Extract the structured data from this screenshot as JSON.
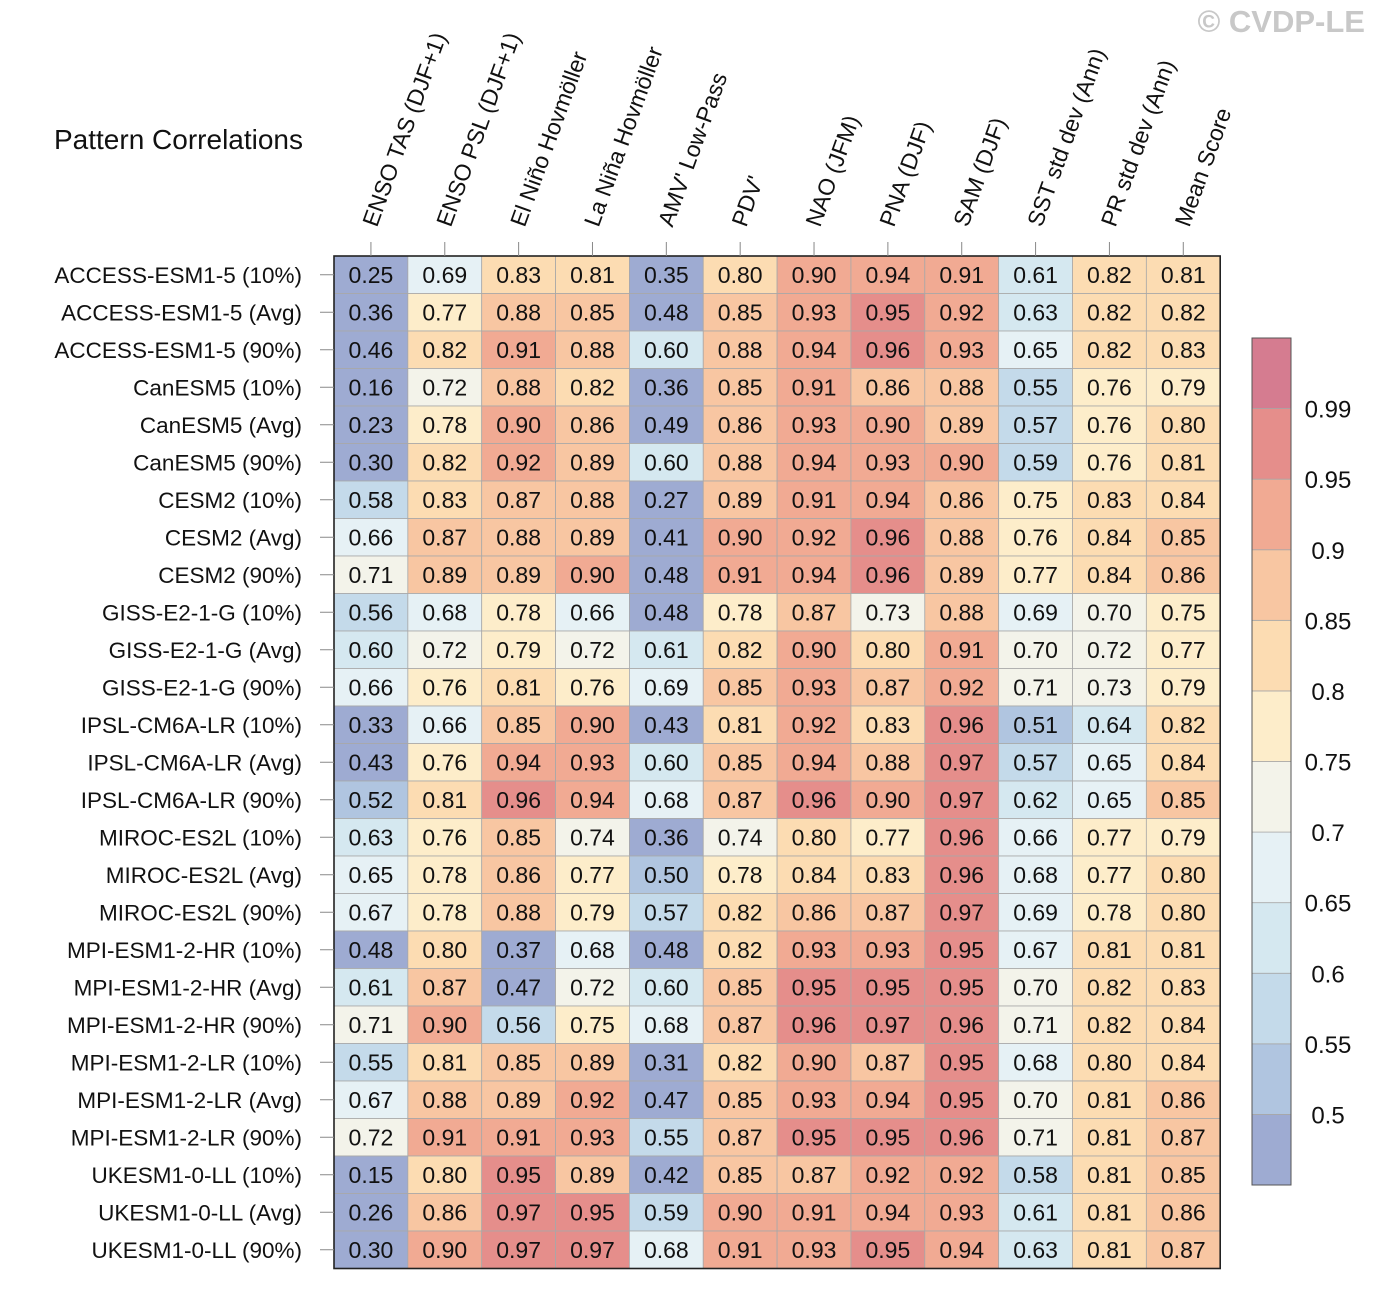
{
  "watermark": "© CVDP-LE",
  "chart_data": {
    "type": "heatmap",
    "title": "Pattern Correlations",
    "columns": [
      "ENSO TAS (DJF+1)",
      "ENSO PSL (DJF+1)",
      "El Niño Hovmöller",
      "La Niña Hovmöller",
      "AMV' Low-Pass",
      "PDV'",
      "NAO (JFM)",
      "PNA (DJF)",
      "SAM (DJF)",
      "SST std dev (Ann)",
      "PR std dev (Ann)",
      "Mean Score"
    ],
    "rows": [
      "ACCESS-ESM1-5 (10%)",
      "ACCESS-ESM1-5 (Avg)",
      "ACCESS-ESM1-5 (90%)",
      "CanESM5 (10%)",
      "CanESM5 (Avg)",
      "CanESM5 (90%)",
      "CESM2 (10%)",
      "CESM2 (Avg)",
      "CESM2 (90%)",
      "GISS-E2-1-G (10%)",
      "GISS-E2-1-G (Avg)",
      "GISS-E2-1-G (90%)",
      "IPSL-CM6A-LR (10%)",
      "IPSL-CM6A-LR (Avg)",
      "IPSL-CM6A-LR (90%)",
      "MIROC-ES2L (10%)",
      "MIROC-ES2L (Avg)",
      "MIROC-ES2L (90%)",
      "MPI-ESM1-2-HR (10%)",
      "MPI-ESM1-2-HR (Avg)",
      "MPI-ESM1-2-HR (90%)",
      "MPI-ESM1-2-LR (10%)",
      "MPI-ESM1-2-LR (Avg)",
      "MPI-ESM1-2-LR (90%)",
      "UKESM1-0-LL (10%)",
      "UKESM1-0-LL (Avg)",
      "UKESM1-0-LL (90%)"
    ],
    "values": [
      [
        "0.25",
        "0.69",
        "0.83",
        "0.81",
        "0.35",
        "0.80",
        "0.90",
        "0.94",
        "0.91",
        "0.61",
        "0.82",
        "0.81"
      ],
      [
        "0.36",
        "0.77",
        "0.88",
        "0.85",
        "0.48",
        "0.85",
        "0.93",
        "0.95",
        "0.92",
        "0.63",
        "0.82",
        "0.82"
      ],
      [
        "0.46",
        "0.82",
        "0.91",
        "0.88",
        "0.60",
        "0.88",
        "0.94",
        "0.96",
        "0.93",
        "0.65",
        "0.82",
        "0.83"
      ],
      [
        "0.16",
        "0.72",
        "0.88",
        "0.82",
        "0.36",
        "0.85",
        "0.91",
        "0.86",
        "0.88",
        "0.55",
        "0.76",
        "0.79"
      ],
      [
        "0.23",
        "0.78",
        "0.90",
        "0.86",
        "0.49",
        "0.86",
        "0.93",
        "0.90",
        "0.89",
        "0.57",
        "0.76",
        "0.80"
      ],
      [
        "0.30",
        "0.82",
        "0.92",
        "0.89",
        "0.60",
        "0.88",
        "0.94",
        "0.93",
        "0.90",
        "0.59",
        "0.76",
        "0.81"
      ],
      [
        "0.58",
        "0.83",
        "0.87",
        "0.88",
        "0.27",
        "0.89",
        "0.91",
        "0.94",
        "0.86",
        "0.75",
        "0.83",
        "0.84"
      ],
      [
        "0.66",
        "0.87",
        "0.88",
        "0.89",
        "0.41",
        "0.90",
        "0.92",
        "0.96",
        "0.88",
        "0.76",
        "0.84",
        "0.85"
      ],
      [
        "0.71",
        "0.89",
        "0.89",
        "0.90",
        "0.48",
        "0.91",
        "0.94",
        "0.96",
        "0.89",
        "0.77",
        "0.84",
        "0.86"
      ],
      [
        "0.56",
        "0.68",
        "0.78",
        "0.66",
        "0.48",
        "0.78",
        "0.87",
        "0.73",
        "0.88",
        "0.69",
        "0.70",
        "0.75"
      ],
      [
        "0.60",
        "0.72",
        "0.79",
        "0.72",
        "0.61",
        "0.82",
        "0.90",
        "0.80",
        "0.91",
        "0.70",
        "0.72",
        "0.77"
      ],
      [
        "0.66",
        "0.76",
        "0.81",
        "0.76",
        "0.69",
        "0.85",
        "0.93",
        "0.87",
        "0.92",
        "0.71",
        "0.73",
        "0.79"
      ],
      [
        "0.33",
        "0.66",
        "0.85",
        "0.90",
        "0.43",
        "0.81",
        "0.92",
        "0.83",
        "0.96",
        "0.51",
        "0.64",
        "0.82"
      ],
      [
        "0.43",
        "0.76",
        "0.94",
        "0.93",
        "0.60",
        "0.85",
        "0.94",
        "0.88",
        "0.97",
        "0.57",
        "0.65",
        "0.84"
      ],
      [
        "0.52",
        "0.81",
        "0.96",
        "0.94",
        "0.68",
        "0.87",
        "0.96",
        "0.90",
        "0.97",
        "0.62",
        "0.65",
        "0.85"
      ],
      [
        "0.63",
        "0.76",
        "0.85",
        "0.74",
        "0.36",
        "0.74",
        "0.80",
        "0.77",
        "0.96",
        "0.66",
        "0.77",
        "0.79"
      ],
      [
        "0.65",
        "0.78",
        "0.86",
        "0.77",
        "0.50",
        "0.78",
        "0.84",
        "0.83",
        "0.96",
        "0.68",
        "0.77",
        "0.80"
      ],
      [
        "0.67",
        "0.78",
        "0.88",
        "0.79",
        "0.57",
        "0.82",
        "0.86",
        "0.87",
        "0.97",
        "0.69",
        "0.78",
        "0.80"
      ],
      [
        "0.48",
        "0.80",
        "0.37",
        "0.68",
        "0.48",
        "0.82",
        "0.93",
        "0.93",
        "0.95",
        "0.67",
        "0.81",
        "0.81"
      ],
      [
        "0.61",
        "0.87",
        "0.47",
        "0.72",
        "0.60",
        "0.85",
        "0.95",
        "0.95",
        "0.95",
        "0.70",
        "0.82",
        "0.83"
      ],
      [
        "0.71",
        "0.90",
        "0.56",
        "0.75",
        "0.68",
        "0.87",
        "0.96",
        "0.97",
        "0.96",
        "0.71",
        "0.82",
        "0.84"
      ],
      [
        "0.55",
        "0.81",
        "0.85",
        "0.89",
        "0.31",
        "0.82",
        "0.90",
        "0.87",
        "0.95",
        "0.68",
        "0.80",
        "0.84"
      ],
      [
        "0.67",
        "0.88",
        "0.89",
        "0.92",
        "0.47",
        "0.85",
        "0.93",
        "0.94",
        "0.95",
        "0.70",
        "0.81",
        "0.86"
      ],
      [
        "0.72",
        "0.91",
        "0.91",
        "0.93",
        "0.55",
        "0.87",
        "0.95",
        "0.95",
        "0.96",
        "0.71",
        "0.81",
        "0.87"
      ],
      [
        "0.15",
        "0.80",
        "0.95",
        "0.89",
        "0.42",
        "0.85",
        "0.87",
        "0.92",
        "0.92",
        "0.58",
        "0.81",
        "0.85"
      ],
      [
        "0.26",
        "0.86",
        "0.97",
        "0.95",
        "0.59",
        "0.90",
        "0.91",
        "0.94",
        "0.93",
        "0.61",
        "0.81",
        "0.86"
      ],
      [
        "0.30",
        "0.90",
        "0.97",
        "0.97",
        "0.68",
        "0.91",
        "0.93",
        "0.95",
        "0.94",
        "0.63",
        "0.81",
        "0.87"
      ]
    ],
    "colorbar": {
      "levels": [
        0.5,
        0.55,
        0.6,
        0.65,
        0.7,
        0.75,
        0.8,
        0.85,
        0.9,
        0.95,
        0.99
      ],
      "labels": [
        "0.5",
        "0.55",
        "0.6",
        "0.65",
        "0.7",
        "0.75",
        "0.8",
        "0.85",
        "0.9",
        "0.95",
        "0.99"
      ],
      "colors": [
        "#9eabd2",
        "#b0c5e0",
        "#c4daea",
        "#d5e8f0",
        "#e6f1f5",
        "#f3f3ea",
        "#fdedca",
        "#fcdcb2",
        "#f8c6a2",
        "#f1aa93",
        "#e58e8b",
        "#d57c90"
      ]
    }
  }
}
